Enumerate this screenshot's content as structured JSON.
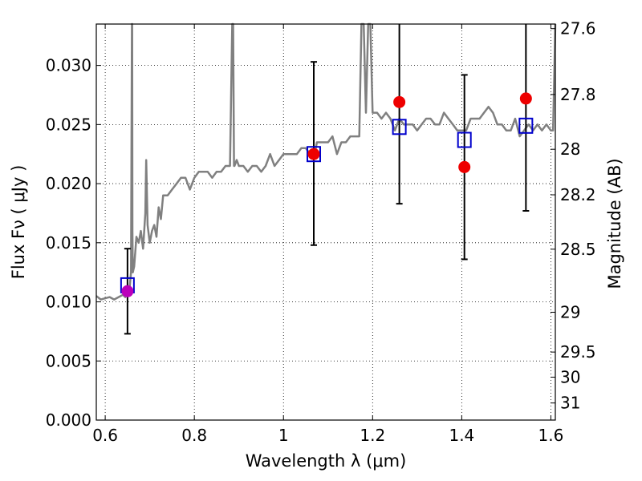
{
  "chart_data": {
    "type": "scatter",
    "xlabel": "Wavelength  λ (μm)",
    "ylabel": "Flux  Fν  ( μJy )",
    "y2label": "Magnitude (AB)",
    "xlim": [
      0.58,
      1.61
    ],
    "ylim": [
      0.0,
      0.0335
    ],
    "grid": true,
    "x_ticks": [
      {
        "value": 0.6,
        "label": "0.6"
      },
      {
        "value": 0.8,
        "label": "0.8"
      },
      {
        "value": 1.0,
        "label": "1"
      },
      {
        "value": 1.2,
        "label": "1.2"
      },
      {
        "value": 1.4,
        "label": "1.4"
      },
      {
        "value": 1.6,
        "label": "1.6"
      }
    ],
    "y_ticks": [
      {
        "value": 0.0,
        "label": "0.000"
      },
      {
        "value": 0.005,
        "label": "0.005"
      },
      {
        "value": 0.01,
        "label": "0.010"
      },
      {
        "value": 0.015,
        "label": "0.015"
      },
      {
        "value": 0.02,
        "label": "0.020"
      },
      {
        "value": 0.025,
        "label": "0.025"
      },
      {
        "value": 0.03,
        "label": "0.030"
      }
    ],
    "y2_ticks": [
      {
        "value": 27.6,
        "label": "27.6"
      },
      {
        "value": 27.8,
        "label": "27.8"
      },
      {
        "value": 28.0,
        "label": "28"
      },
      {
        "value": 28.2,
        "label": "28.2"
      },
      {
        "value": 28.5,
        "label": "28.5"
      },
      {
        "value": 29.0,
        "label": "29"
      },
      {
        "value": 29.5,
        "label": "29.5"
      },
      {
        "value": 30.0,
        "label": "30"
      },
      {
        "value": 31.0,
        "label": "31"
      }
    ],
    "series": [
      {
        "kind": "spectrum",
        "color": "#808080",
        "x": [
          0.58,
          0.59,
          0.6,
          0.61,
          0.62,
          0.63,
          0.64,
          0.645,
          0.65,
          0.655,
          0.658,
          0.66,
          0.6605,
          0.661,
          0.662,
          0.665,
          0.67,
          0.675,
          0.68,
          0.685,
          0.69,
          0.692,
          0.695,
          0.7,
          0.705,
          0.71,
          0.715,
          0.72,
          0.725,
          0.73,
          0.74,
          0.75,
          0.76,
          0.77,
          0.78,
          0.79,
          0.8,
          0.81,
          0.82,
          0.83,
          0.84,
          0.85,
          0.86,
          0.87,
          0.88,
          0.885,
          0.887,
          0.889,
          0.89,
          0.895,
          0.9,
          0.91,
          0.92,
          0.93,
          0.94,
          0.95,
          0.96,
          0.97,
          0.98,
          0.99,
          1.0,
          1.01,
          1.02,
          1.03,
          1.04,
          1.05,
          1.06,
          1.07,
          1.075,
          1.08,
          1.09,
          1.1,
          1.11,
          1.12,
          1.13,
          1.14,
          1.15,
          1.16,
          1.17,
          1.175,
          1.18,
          1.185,
          1.19,
          1.195,
          1.2,
          1.21,
          1.22,
          1.23,
          1.24,
          1.25,
          1.26,
          1.27,
          1.28,
          1.29,
          1.3,
          1.31,
          1.32,
          1.33,
          1.34,
          1.35,
          1.36,
          1.37,
          1.38,
          1.39,
          1.4,
          1.41,
          1.42,
          1.43,
          1.44,
          1.45,
          1.46,
          1.47,
          1.48,
          1.49,
          1.5,
          1.51,
          1.52,
          1.53,
          1.54,
          1.55,
          1.56,
          1.57,
          1.58,
          1.59,
          1.6,
          1.605,
          1.61
        ],
        "y": [
          0.0105,
          0.0102,
          0.0103,
          0.0104,
          0.0102,
          0.0104,
          0.0106,
          0.0104,
          0.011,
          0.0113,
          0.0125,
          0.034,
          0.034,
          0.016,
          0.0125,
          0.013,
          0.0155,
          0.015,
          0.016,
          0.0145,
          0.0175,
          0.022,
          0.0165,
          0.015,
          0.016,
          0.0165,
          0.0155,
          0.018,
          0.017,
          0.019,
          0.019,
          0.0195,
          0.02,
          0.0205,
          0.0205,
          0.0195,
          0.0205,
          0.021,
          0.021,
          0.021,
          0.0205,
          0.021,
          0.021,
          0.0215,
          0.0215,
          0.034,
          0.034,
          0.0215,
          0.0215,
          0.022,
          0.0215,
          0.0215,
          0.021,
          0.0215,
          0.0215,
          0.021,
          0.0215,
          0.0225,
          0.0215,
          0.022,
          0.0225,
          0.0225,
          0.0225,
          0.0225,
          0.023,
          0.023,
          0.0225,
          0.0225,
          0.0235,
          0.0235,
          0.0235,
          0.0235,
          0.024,
          0.0225,
          0.0235,
          0.0235,
          0.024,
          0.024,
          0.024,
          0.034,
          0.034,
          0.026,
          0.034,
          0.034,
          0.026,
          0.026,
          0.0255,
          0.026,
          0.0255,
          0.0245,
          0.0255,
          0.025,
          0.025,
          0.025,
          0.0245,
          0.025,
          0.0255,
          0.0255,
          0.025,
          0.025,
          0.026,
          0.0255,
          0.025,
          0.0245,
          0.0245,
          0.0245,
          0.0255,
          0.0255,
          0.0255,
          0.026,
          0.0265,
          0.026,
          0.025,
          0.025,
          0.0245,
          0.0245,
          0.0255,
          0.024,
          0.0245,
          0.025,
          0.0245,
          0.025,
          0.0245,
          0.025,
          0.0245,
          0.0245,
          0.034
        ]
      },
      {
        "kind": "model_boxes",
        "color": "#0000cc",
        "x": [
          0.65,
          1.068,
          1.26,
          1.406,
          1.544
        ],
        "y": [
          0.0114,
          0.0225,
          0.0248,
          0.0237,
          0.0249
        ]
      },
      {
        "kind": "measurements",
        "color": "#ee0000",
        "x": [
          0.65,
          1.068,
          1.26,
          1.406,
          1.544
        ],
        "y": [
          0.0109,
          0.0225,
          0.0269,
          0.0214,
          0.0272
        ],
        "yerr_low": [
          0.0073,
          0.0148,
          0.0183,
          0.0136,
          0.0177
        ],
        "yerr_high": [
          0.0145,
          0.0303,
          0.034,
          0.0292,
          0.034
        ],
        "colors": [
          "#bb00bb",
          "#ee0000",
          "#ee0000",
          "#ee0000",
          "#ee0000"
        ]
      }
    ]
  }
}
